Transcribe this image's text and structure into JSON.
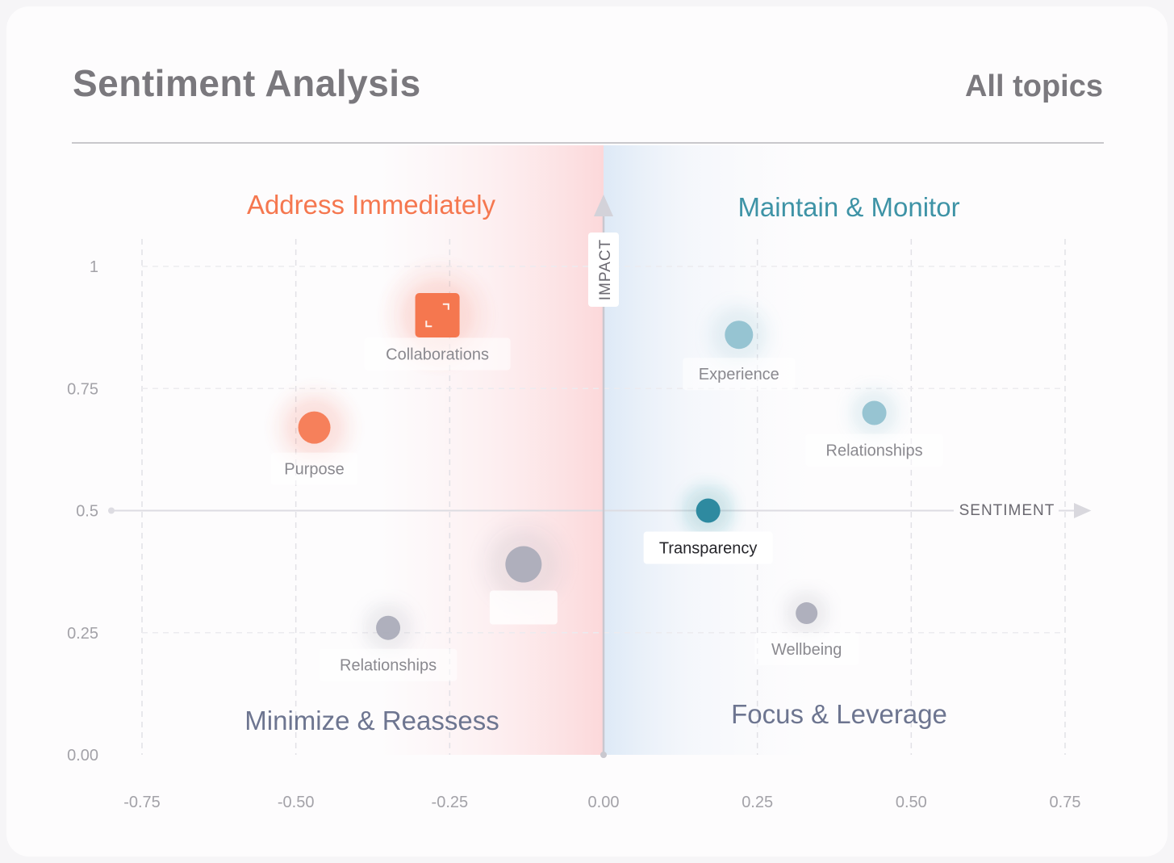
{
  "header": {
    "title": "Sentiment Analysis",
    "filter_label": "All topics"
  },
  "colors": {
    "negative": "#f5774f",
    "positive_light": "#8fc0ce",
    "positive_dark": "#2e8aa0",
    "neutral": "#a9aab8",
    "quadrant_top_right": "#3e93a6",
    "quadrant_bottom": "#6d7590"
  },
  "chart_data": {
    "type": "scatter",
    "title": "",
    "xlabel": "SENTIMENT",
    "ylabel": "IMPACT",
    "xlim": [
      -0.75,
      0.75
    ],
    "ylim": [
      0,
      1
    ],
    "x_ticks": [
      "-0.75",
      "-0.50",
      "-0.25",
      "0.00",
      "0.25",
      "0.50",
      "0.75"
    ],
    "x_tick_values": [
      -0.75,
      -0.5,
      -0.25,
      0,
      0.25,
      0.5,
      0.75
    ],
    "y_ticks": [
      "0.00",
      "0.25",
      "0.5",
      "0.75",
      "1"
    ],
    "y_tick_values": [
      0,
      0.25,
      0.5,
      0.75,
      1
    ],
    "grid": true,
    "quadrants": {
      "top_left": "Address Immediately",
      "top_right": "Maintain & Monitor",
      "bottom_left": "Minimize & Reassess",
      "bottom_right": "Focus & Leverage"
    },
    "points": [
      {
        "label": "Collaborations",
        "x": -0.27,
        "y": 0.9,
        "size": 3,
        "tone": "negative",
        "shape": "square"
      },
      {
        "label": "Purpose",
        "x": -0.47,
        "y": 0.67,
        "size": 2,
        "tone": "negative",
        "shape": "circle"
      },
      {
        "label": "",
        "x": -0.13,
        "y": 0.39,
        "size": 2.5,
        "tone": "neutral",
        "shape": "circle"
      },
      {
        "label": "Relationships",
        "x": -0.35,
        "y": 0.26,
        "size": 1,
        "tone": "neutral",
        "shape": "circle"
      },
      {
        "label": "Experience",
        "x": 0.22,
        "y": 0.86,
        "size": 1.5,
        "tone": "positive_light",
        "shape": "circle"
      },
      {
        "label": "Relationships",
        "x": 0.44,
        "y": 0.7,
        "size": 1,
        "tone": "positive_light",
        "shape": "circle"
      },
      {
        "label": "Transparency",
        "x": 0.17,
        "y": 0.5,
        "size": 1,
        "tone": "positive_dark",
        "shape": "circle"
      },
      {
        "label": "Wellbeing",
        "x": 0.33,
        "y": 0.29,
        "size": 0.7,
        "tone": "neutral",
        "shape": "circle"
      }
    ]
  }
}
